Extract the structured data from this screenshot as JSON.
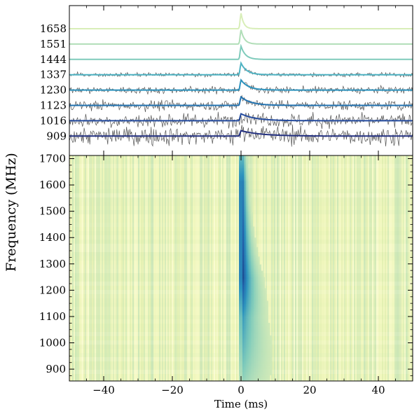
{
  "chart_data": [
    {
      "type": "line",
      "panel": "frequency-channel profiles",
      "series_labels": [
        "1658",
        "1551",
        "1444",
        "1337",
        "1230",
        "1123",
        "1016",
        "909"
      ],
      "series_colors": [
        "#d8eeb8",
        "#b1deb8",
        "#7fcbbb",
        "#4fb3c3",
        "#2d93be",
        "#2272b0",
        "#244b9e",
        "#233080"
      ],
      "noise_color": "#555555",
      "noise_scale": [
        0.02,
        0.04,
        0.07,
        0.1,
        0.17,
        0.25,
        0.35,
        0.45
      ],
      "peak_height": [
        1.0,
        0.92,
        0.85,
        0.75,
        0.65,
        0.55,
        0.45,
        0.35
      ],
      "scattering_tau_ms": [
        0.8,
        1.0,
        1.3,
        1.7,
        2.2,
        3.0,
        4.2,
        6.0
      ],
      "pulse_time_ms": 0.0,
      "xlim": [
        -50,
        50
      ],
      "x_ticks": [
        -40,
        -20,
        0,
        20,
        40
      ],
      "grid": false
    },
    {
      "type": "heatmap",
      "panel": "dynamic spectrum",
      "xlabel": "Time (ms)",
      "ylabel": "Frequency (MHz)",
      "xlim": [
        -50,
        50
      ],
      "ylim": [
        855,
        1712
      ],
      "x_ticks": [
        -40,
        -20,
        0,
        20,
        40
      ],
      "y_ticks": [
        900,
        1000,
        1100,
        1200,
        1300,
        1400,
        1500,
        1600,
        1700
      ],
      "colormap": "YlGnBu",
      "background_color": "#eef5b8",
      "peak_color": "#0b1d4f",
      "grid": false
    }
  ]
}
